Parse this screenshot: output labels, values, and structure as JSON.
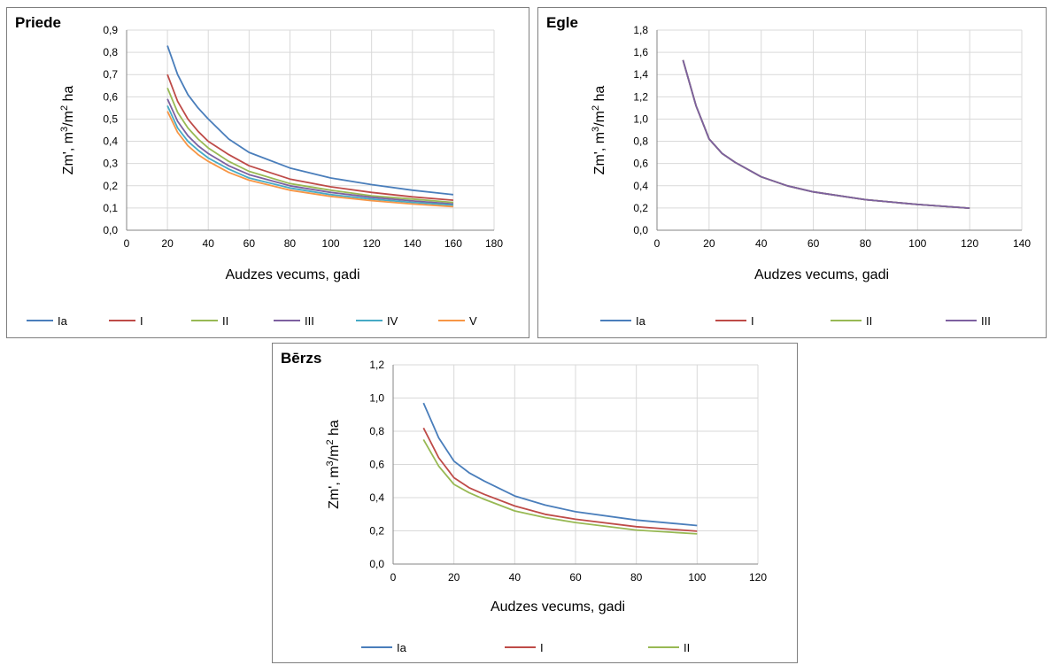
{
  "chart_data": [
    {
      "type": "line",
      "title": "Priede",
      "xlabel": "Audzes vecums, gadi",
      "ylabel_parts": [
        "Zm', m",
        "3",
        "/m",
        "2",
        " ha"
      ],
      "xlim": [
        0,
        180
      ],
      "ylim": [
        0,
        0.9
      ],
      "xticks": [
        0,
        20,
        40,
        60,
        80,
        100,
        120,
        140,
        160,
        180
      ],
      "xtick_labels": [
        "0",
        "20",
        "40",
        "60",
        "80",
        "100",
        "120",
        "140",
        "160",
        "180"
      ],
      "yticks": [
        0,
        0.1,
        0.2,
        0.3,
        0.4,
        0.5,
        0.6,
        0.7,
        0.8,
        0.9
      ],
      "ytick_labels": [
        "0,0",
        "0,1",
        "0,2",
        "0,3",
        "0,4",
        "0,5",
        "0,6",
        "0,7",
        "0,8",
        "0,9"
      ],
      "grid": true,
      "legend_position": "bottom",
      "x": [
        20,
        25,
        30,
        35,
        40,
        50,
        60,
        80,
        100,
        120,
        140,
        160
      ],
      "series": [
        {
          "name": "Ia",
          "color": "#4a7ebb",
          "values": [
            0.83,
            0.7,
            0.61,
            0.55,
            0.5,
            0.41,
            0.35,
            0.28,
            0.235,
            0.205,
            0.18,
            0.16
          ]
        },
        {
          "name": "I",
          "color": "#be4b48",
          "values": [
            0.7,
            0.58,
            0.5,
            0.445,
            0.4,
            0.34,
            0.29,
            0.23,
            0.195,
            0.17,
            0.15,
            0.135
          ]
        },
        {
          "name": "II",
          "color": "#98b954",
          "values": [
            0.64,
            0.53,
            0.46,
            0.41,
            0.37,
            0.31,
            0.265,
            0.21,
            0.18,
            0.155,
            0.14,
            0.125
          ]
        },
        {
          "name": "III",
          "color": "#7d60a0",
          "values": [
            0.59,
            0.49,
            0.425,
            0.38,
            0.345,
            0.29,
            0.25,
            0.2,
            0.17,
            0.148,
            0.132,
            0.118
          ]
        },
        {
          "name": "IV",
          "color": "#46aac5",
          "values": [
            0.56,
            0.46,
            0.4,
            0.36,
            0.325,
            0.275,
            0.235,
            0.19,
            0.16,
            0.14,
            0.125,
            0.113
          ]
        },
        {
          "name": "V",
          "color": "#f79646",
          "values": [
            0.535,
            0.44,
            0.38,
            0.34,
            0.31,
            0.26,
            0.225,
            0.18,
            0.152,
            0.133,
            0.118,
            0.106
          ]
        }
      ]
    },
    {
      "type": "line",
      "title": "Egle",
      "xlabel": "Audzes vecums, gadi",
      "ylabel_parts": [
        "Zm', m",
        "3",
        "/m",
        "2",
        " ha"
      ],
      "xlim": [
        0,
        140
      ],
      "ylim": [
        0,
        1.8
      ],
      "xticks": [
        0,
        20,
        40,
        60,
        80,
        100,
        120,
        140
      ],
      "xtick_labels": [
        "0",
        "20",
        "40",
        "60",
        "80",
        "100",
        "120",
        "140"
      ],
      "yticks": [
        0,
        0.2,
        0.4,
        0.6,
        0.8,
        1.0,
        1.2,
        1.4,
        1.6,
        1.8
      ],
      "ytick_labels": [
        "0,0",
        "0,2",
        "0,4",
        "0,6",
        "0,8",
        "1,0",
        "1,2",
        "1,4",
        "1,6",
        "1,8"
      ],
      "grid": true,
      "legend_position": "bottom",
      "x": [
        10,
        15,
        20,
        25,
        30,
        40,
        50,
        60,
        80,
        100,
        120
      ],
      "series": [
        {
          "name": "Ia",
          "color": "#4a7ebb",
          "values": [
            1.53,
            1.12,
            0.82,
            0.69,
            0.61,
            0.48,
            0.4,
            0.345,
            0.275,
            0.232,
            0.198
          ]
        },
        {
          "name": "I",
          "color": "#be4b48",
          "values": [
            1.53,
            1.12,
            0.82,
            0.69,
            0.61,
            0.48,
            0.4,
            0.345,
            0.275,
            0.232,
            0.198
          ]
        },
        {
          "name": "II",
          "color": "#98b954",
          "values": [
            1.53,
            1.12,
            0.82,
            0.69,
            0.61,
            0.48,
            0.4,
            0.345,
            0.275,
            0.232,
            0.198
          ]
        },
        {
          "name": "III",
          "color": "#7d60a0",
          "values": [
            1.53,
            1.12,
            0.82,
            0.69,
            0.61,
            0.48,
            0.4,
            0.345,
            0.275,
            0.232,
            0.198
          ]
        }
      ]
    },
    {
      "type": "line",
      "title": "Bērzs",
      "xlabel": "Audzes vecums, gadi",
      "ylabel_parts": [
        "Zm', m",
        "3",
        "/m",
        "2",
        " ha"
      ],
      "xlim": [
        0,
        120
      ],
      "ylim": [
        0,
        1.2
      ],
      "xticks": [
        0,
        20,
        40,
        60,
        80,
        100,
        120
      ],
      "xtick_labels": [
        "0",
        "20",
        "40",
        "60",
        "80",
        "100",
        "120"
      ],
      "yticks": [
        0,
        0.2,
        0.4,
        0.6,
        0.8,
        1.0,
        1.2
      ],
      "ytick_labels": [
        "0,0",
        "0,2",
        "0,4",
        "0,6",
        "0,8",
        "1,0",
        "1,2"
      ],
      "grid": true,
      "legend_position": "bottom",
      "x": [
        10,
        15,
        20,
        25,
        30,
        40,
        50,
        60,
        80,
        100
      ],
      "series": [
        {
          "name": "Ia",
          "color": "#4a7ebb",
          "values": [
            0.97,
            0.76,
            0.62,
            0.55,
            0.5,
            0.41,
            0.355,
            0.315,
            0.265,
            0.232
          ]
        },
        {
          "name": "I",
          "color": "#be4b48",
          "values": [
            0.82,
            0.64,
            0.52,
            0.46,
            0.42,
            0.35,
            0.3,
            0.27,
            0.225,
            0.198
          ]
        },
        {
          "name": "II",
          "color": "#98b954",
          "values": [
            0.75,
            0.59,
            0.48,
            0.43,
            0.39,
            0.32,
            0.28,
            0.25,
            0.205,
            0.182
          ]
        }
      ]
    }
  ]
}
